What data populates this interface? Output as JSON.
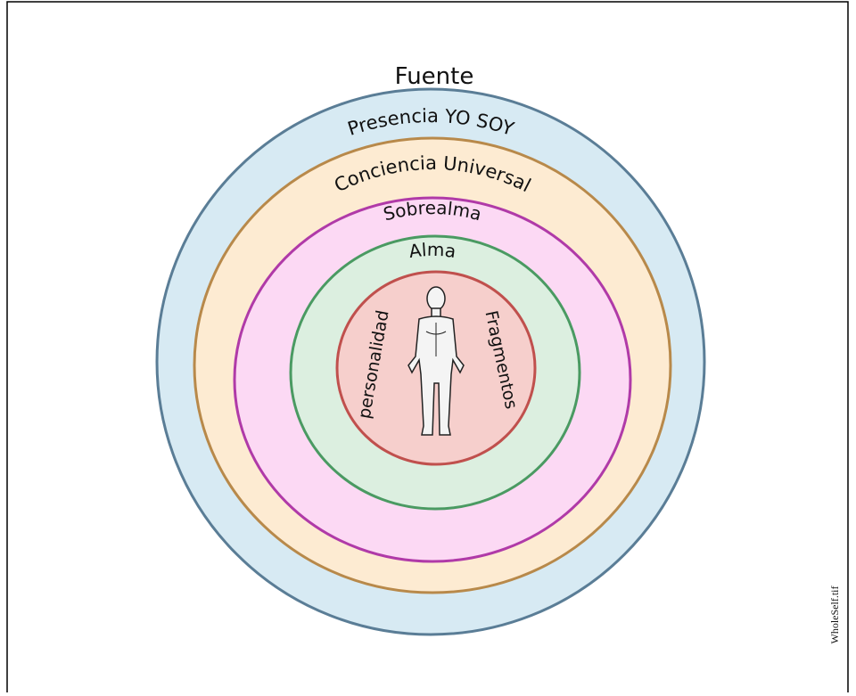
{
  "title": "Fuente",
  "rings": [
    "Presencia YO SOY",
    "Conciencia Universal",
    "Sobrealma",
    "Alma"
  ],
  "inner": {
    "left": "personalidad",
    "right": "Fragmentos"
  },
  "file_name": "WholeSelf.tif"
}
